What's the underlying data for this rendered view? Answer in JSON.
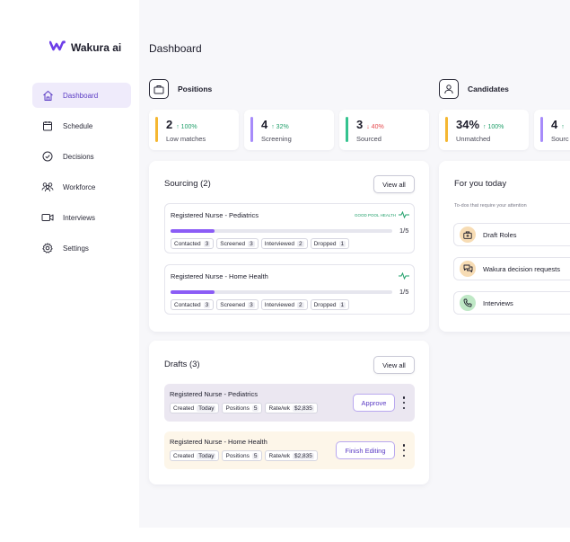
{
  "app": {
    "name": "Wakura ai"
  },
  "sidebar": {
    "items": [
      {
        "label": "Dashboard",
        "icon": "home-icon",
        "active": true
      },
      {
        "label": "Schedule",
        "icon": "calendar-icon",
        "active": false
      },
      {
        "label": "Decisions",
        "icon": "check-circle-icon",
        "active": false
      },
      {
        "label": "Workforce",
        "icon": "users-icon",
        "active": false
      },
      {
        "label": "Interviews",
        "icon": "video-icon",
        "active": false
      },
      {
        "label": "Settings",
        "icon": "gear-icon",
        "active": false
      }
    ]
  },
  "header": {
    "title": "Dashboard"
  },
  "positions": {
    "title": "Positions",
    "stats": [
      {
        "value": "2",
        "change": "↑ 100%",
        "label": "Low matches",
        "color": "#f5b731",
        "change_color": "#22a06b"
      },
      {
        "value": "4",
        "change": "↑ 32%",
        "label": "Screening",
        "color": "#a78bfa",
        "change_color": "#22a06b"
      },
      {
        "value": "3",
        "change": "↓ 40%",
        "label": "Sourced",
        "color": "#34c38f",
        "change_color": "#e5484d"
      }
    ]
  },
  "candidates": {
    "title": "Candidates",
    "stats": [
      {
        "value": "34%",
        "change": "↑ 100%",
        "label": "Unmatched",
        "color": "#f5b731",
        "change_color": "#22a06b"
      },
      {
        "value": "4",
        "change": "↑",
        "label": "Sourc",
        "color": "#a78bfa",
        "change_color": "#22a06b"
      }
    ]
  },
  "sourcing": {
    "title": "Sourcing (2)",
    "view_all": "View all",
    "jobs": [
      {
        "title": "Registered Nurse - Pediatrics",
        "badge": "GOOD POOL HEALTH",
        "fraction": "1/5",
        "progress": 0.2,
        "pills": [
          {
            "label": "Contacted",
            "value": "3"
          },
          {
            "label": "Screened",
            "value": "3"
          },
          {
            "label": "Interviewed",
            "value": "2"
          },
          {
            "label": "Dropped",
            "value": "1"
          }
        ]
      },
      {
        "title": "Registered Nurse - Home Health",
        "badge": "",
        "fraction": "1/5",
        "progress": 0.2,
        "pills": [
          {
            "label": "Contacted",
            "value": "3"
          },
          {
            "label": "Screened",
            "value": "3"
          },
          {
            "label": "Interviewed",
            "value": "2"
          },
          {
            "label": "Dropped",
            "value": "1"
          }
        ]
      }
    ]
  },
  "drafts": {
    "title": "Drafts (3)",
    "view_all": "View all",
    "items": [
      {
        "title": "Registered Nurse - Pediatrics",
        "action": "Approve",
        "bg": "#ebe7f1",
        "pills": [
          {
            "label": "Created",
            "value": "Today"
          },
          {
            "label": "Positions",
            "value": "5"
          },
          {
            "label": "Rate/wk",
            "value": "$2,835"
          }
        ]
      },
      {
        "title": "Registered Nurse - Home Health",
        "action": "Finish Editing",
        "bg": "#fdf6e9",
        "pills": [
          {
            "label": "Created",
            "value": "Today"
          },
          {
            "label": "Positions",
            "value": "5"
          },
          {
            "label": "Rate/wk",
            "value": "$2,835"
          }
        ]
      }
    ]
  },
  "for_you": {
    "title": "For you today",
    "subtitle": "To-dos that require your attention",
    "items": [
      {
        "label": "Draft Roles",
        "icon": "briefcase-plus-icon",
        "color": "#f7dcb4"
      },
      {
        "label": "Wakura decision requests",
        "icon": "chat-icon",
        "color": "#f7dcb4"
      },
      {
        "label": "Interviews",
        "icon": "phone-icon",
        "color": "#bfe8c6"
      }
    ]
  }
}
